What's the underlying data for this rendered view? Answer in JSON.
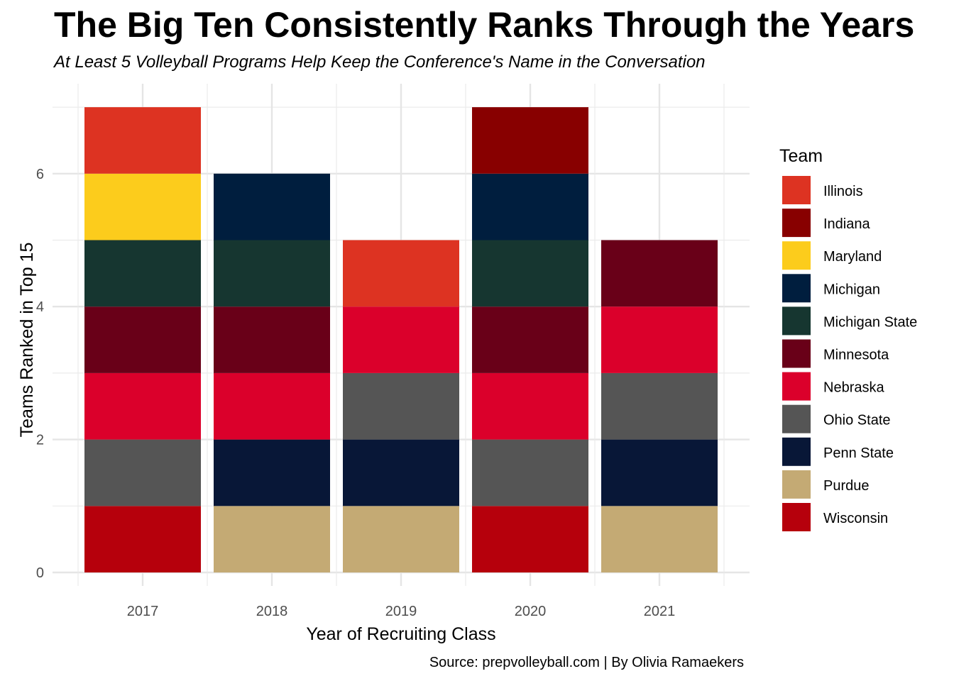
{
  "chart_data": {
    "type": "bar",
    "stacked": true,
    "title": "The Big Ten Consistently Ranks Through the Years",
    "subtitle": "At Least 5 Volleyball Programs Help Keep the Conference's Name in the Conversation",
    "caption": "Source: prepvolleyball.com | By Olivia Ramaekers",
    "xlabel": "Year of Recruiting Class",
    "ylabel": "Teams Ranked in Top 15",
    "categories": [
      "2017",
      "2018",
      "2019",
      "2020",
      "2021"
    ],
    "ylim": [
      0,
      7
    ],
    "yticks": [
      0,
      2,
      4,
      6
    ],
    "grid": true,
    "legend_title": "Team",
    "legend_position": "right",
    "series": [
      {
        "name": "Illinois",
        "color": "#DD3322",
        "values": [
          1,
          0,
          1,
          0,
          0
        ]
      },
      {
        "name": "Indiana",
        "color": "#880000",
        "values": [
          0,
          0,
          0,
          1,
          0
        ]
      },
      {
        "name": "Maryland",
        "color": "#FCCC1C",
        "values": [
          1,
          0,
          0,
          0,
          0
        ]
      },
      {
        "name": "Michigan",
        "color": "#001E3E",
        "values": [
          0,
          1,
          0,
          1,
          0
        ]
      },
      {
        "name": "Michigan State",
        "color": "#163630",
        "values": [
          1,
          1,
          0,
          1,
          0
        ]
      },
      {
        "name": "Minnesota",
        "color": "#690018",
        "values": [
          1,
          1,
          0,
          1,
          1
        ]
      },
      {
        "name": "Nebraska",
        "color": "#DB002B",
        "values": [
          1,
          1,
          1,
          1,
          1
        ]
      },
      {
        "name": "Ohio State",
        "color": "#555555",
        "values": [
          1,
          0,
          1,
          1,
          1
        ]
      },
      {
        "name": "Penn State",
        "color": "#081737",
        "values": [
          0,
          1,
          1,
          0,
          1
        ]
      },
      {
        "name": "Purdue",
        "color": "#C4AA74",
        "values": [
          0,
          1,
          1,
          0,
          1
        ]
      },
      {
        "name": "Wisconsin",
        "color": "#B6000C",
        "values": [
          1,
          0,
          0,
          1,
          0
        ]
      }
    ]
  }
}
